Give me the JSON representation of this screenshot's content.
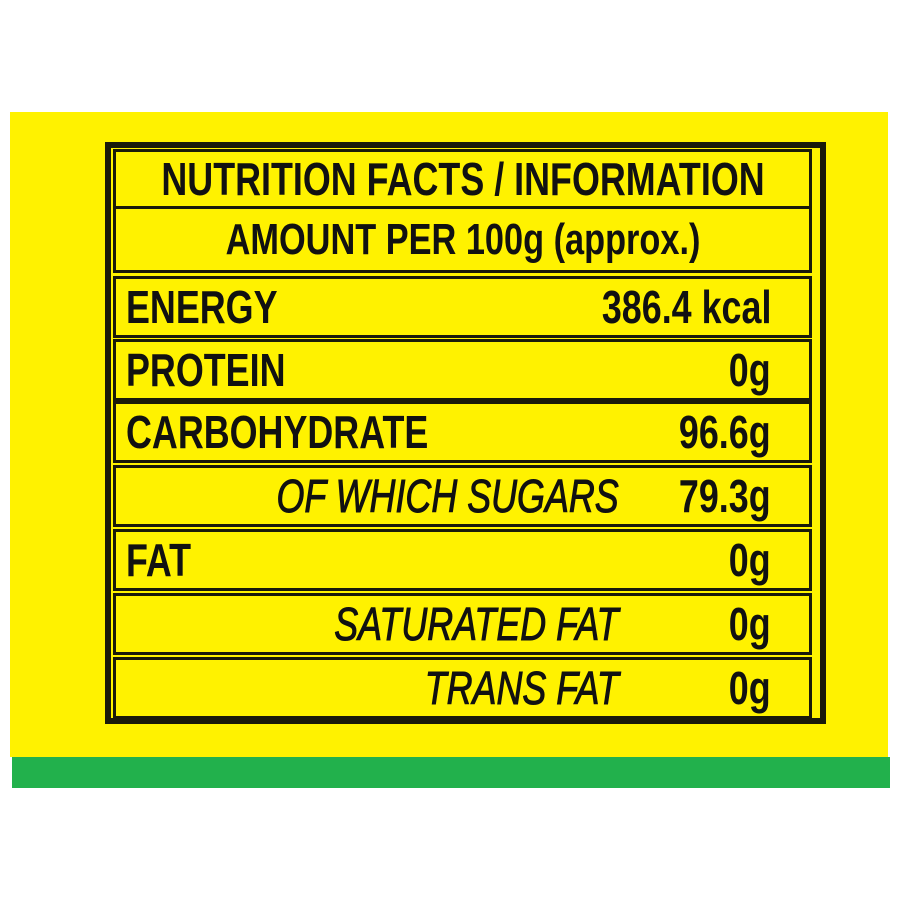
{
  "colors": {
    "panel": "#fff200",
    "stripe": "#22b14c",
    "ink": "#111111"
  },
  "label": {
    "title": "NUTRITION FACTS / INFORMATION",
    "serving": "AMOUNT PER 100g (approx.)",
    "rows": [
      {
        "name": "ENERGY",
        "value": "386.4 kcal",
        "sub": false
      },
      {
        "name": "PROTEIN",
        "value": "0g",
        "sub": false
      },
      {
        "name": "CARBOHYDRATE",
        "value": "96.6g",
        "sub": false
      },
      {
        "name": "OF WHICH SUGARS",
        "value": "79.3g",
        "sub": true
      },
      {
        "name": "FAT",
        "value": "0g",
        "sub": false
      },
      {
        "name": "SATURATED FAT",
        "value": "0g",
        "sub": true
      },
      {
        "name": "TRANS FAT",
        "value": "0g",
        "sub": true
      }
    ]
  }
}
